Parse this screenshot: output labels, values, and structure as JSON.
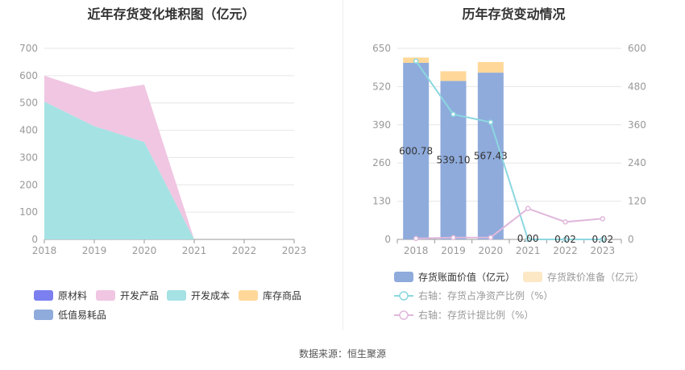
{
  "source_text": "数据来源：恒生聚源",
  "chart_data": [
    {
      "type": "area",
      "title": "近年存货变化堆积图（亿元）",
      "categories": [
        "2018",
        "2019",
        "2020",
        "2021",
        "2022",
        "2023"
      ],
      "ylim": [
        0,
        700
      ],
      "yticks": [
        "0",
        "100",
        "200",
        "300",
        "400",
        "500",
        "600",
        "700"
      ],
      "stacked": true,
      "grid": true,
      "legend_position": "bottom",
      "series": [
        {
          "name": "原材料",
          "color": "#7b7fef",
          "values": [
            0,
            0,
            0,
            0,
            0,
            0
          ]
        },
        {
          "name": "开发产品",
          "color": "#f0c6e2",
          "values": [
            95,
            125,
            210,
            0,
            0,
            0
          ]
        },
        {
          "name": "开发成本",
          "color": "#a5e2e4",
          "values": [
            505,
            415,
            357,
            0,
            0,
            0
          ]
        },
        {
          "name": "库存商品",
          "color": "#ffd899",
          "values": [
            0,
            0,
            0,
            0,
            0,
            0
          ]
        },
        {
          "name": "低值易耗品",
          "color": "#8fabdc",
          "values": [
            0,
            0,
            0,
            0,
            0,
            0
          ]
        }
      ]
    },
    {
      "type": "bar",
      "title": "历年存货变动情况",
      "categories": [
        "2018",
        "2019",
        "2020",
        "2021",
        "2022",
        "2023"
      ],
      "ylim": [
        0,
        650
      ],
      "yticks": [
        "0",
        "130",
        "260",
        "390",
        "520",
        "650"
      ],
      "y2lim": [
        0,
        600
      ],
      "y2ticks": [
        "0",
        "120",
        "240",
        "360",
        "480",
        "600"
      ],
      "stacked": true,
      "grid": true,
      "legend_position": "bottom",
      "bar_series": [
        {
          "name": "存货账面价值（亿元）",
          "color": "#8fabdc",
          "values": [
            600.78,
            539.1,
            567.43,
            0.0,
            0.02,
            0.02
          ],
          "labels": [
            "600.78",
            "539.10",
            "567.43",
            "0.00",
            "0.02",
            "0.02"
          ]
        },
        {
          "name": "存货跌价准备（亿元）",
          "color": "#ffd899",
          "values": [
            18,
            33,
            36,
            0,
            0,
            0
          ]
        }
      ],
      "line_series": [
        {
          "name": "右轴：存货占净资产比例（%）",
          "color": "#8cd7df",
          "values": [
            560,
            393,
            368,
            0,
            0,
            0
          ]
        },
        {
          "name": "右轴：存货计提比例（%）",
          "color": "#e0b8dc",
          "values": [
            2.9,
            5.8,
            6.0,
            97,
            55,
            65
          ]
        }
      ]
    }
  ]
}
